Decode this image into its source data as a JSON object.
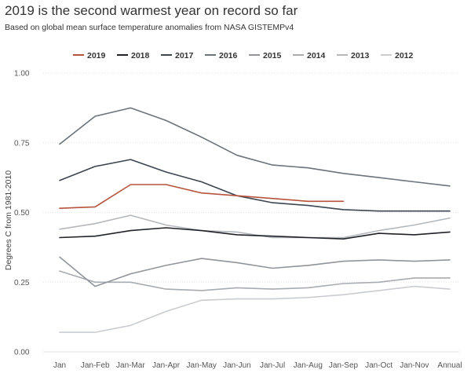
{
  "title": "2019 is the second warmest year on record so far",
  "subtitle": "Based on global mean surface temperature anomalies from NASA GISTEMPv4",
  "chart_data": {
    "type": "line",
    "title": "2019 is the second warmest year on record so far",
    "subtitle": "Based on global mean surface temperature anomalies from NASA GISTEMPv4",
    "xlabel": "",
    "ylabel": "Degrees C from 1981-2010",
    "ylim": [
      0,
      1.0
    ],
    "y_ticks": [
      "0.00",
      "0.25",
      "0.50",
      "0.75",
      "1.00"
    ],
    "categories": [
      "Jan",
      "Jan-Feb",
      "Jan-Mar",
      "Jan-Apr",
      "Jan-May",
      "Jan-Jun",
      "Jan-Jul",
      "Jan-Aug",
      "Jan-Sep",
      "Jan-Oct",
      "Jan-Nov",
      "Annual"
    ],
    "grid": "horizontal",
    "legend_position": "top",
    "series": [
      {
        "name": "2019",
        "color": "#b5533c",
        "values": [
          0.515,
          0.52,
          0.6,
          0.6,
          0.57,
          0.56,
          0.55,
          0.54,
          0.54,
          null,
          null,
          null
        ]
      },
      {
        "name": "2018",
        "color": "#1f2329",
        "values": [
          0.41,
          0.415,
          0.435,
          0.445,
          0.435,
          0.42,
          0.415,
          0.41,
          0.405,
          0.425,
          0.42,
          0.43
        ]
      },
      {
        "name": "2017",
        "color": "#3d4650",
        "values": [
          0.615,
          0.665,
          0.69,
          0.645,
          0.61,
          0.56,
          0.535,
          0.525,
          0.51,
          0.505,
          0.505,
          0.505
        ]
      },
      {
        "name": "2016",
        "color": "#6b737b",
        "values": [
          0.745,
          0.845,
          0.875,
          0.83,
          0.77,
          0.705,
          0.67,
          0.66,
          0.64,
          0.625,
          0.61,
          0.595
        ]
      },
      {
        "name": "2015",
        "color": "#8f959b",
        "values": [
          0.34,
          0.235,
          0.28,
          0.31,
          0.335,
          0.32,
          0.3,
          0.31,
          0.325,
          0.33,
          0.325,
          0.33
        ]
      },
      {
        "name": "2014",
        "color": "#a7acb1",
        "values": [
          0.29,
          0.25,
          0.25,
          0.225,
          0.22,
          0.23,
          0.225,
          0.23,
          0.245,
          0.25,
          0.265,
          0.265
        ]
      },
      {
        "name": "2013",
        "color": "#b3b8bd",
        "values": [
          0.44,
          0.46,
          0.49,
          0.455,
          0.435,
          0.43,
          0.41,
          0.41,
          0.41,
          0.435,
          0.455,
          0.48
        ]
      },
      {
        "name": "2012",
        "color": "#c9cdd1",
        "values": [
          0.07,
          0.07,
          0.095,
          0.145,
          0.185,
          0.19,
          0.19,
          0.195,
          0.205,
          0.22,
          0.235,
          0.225
        ]
      }
    ]
  }
}
